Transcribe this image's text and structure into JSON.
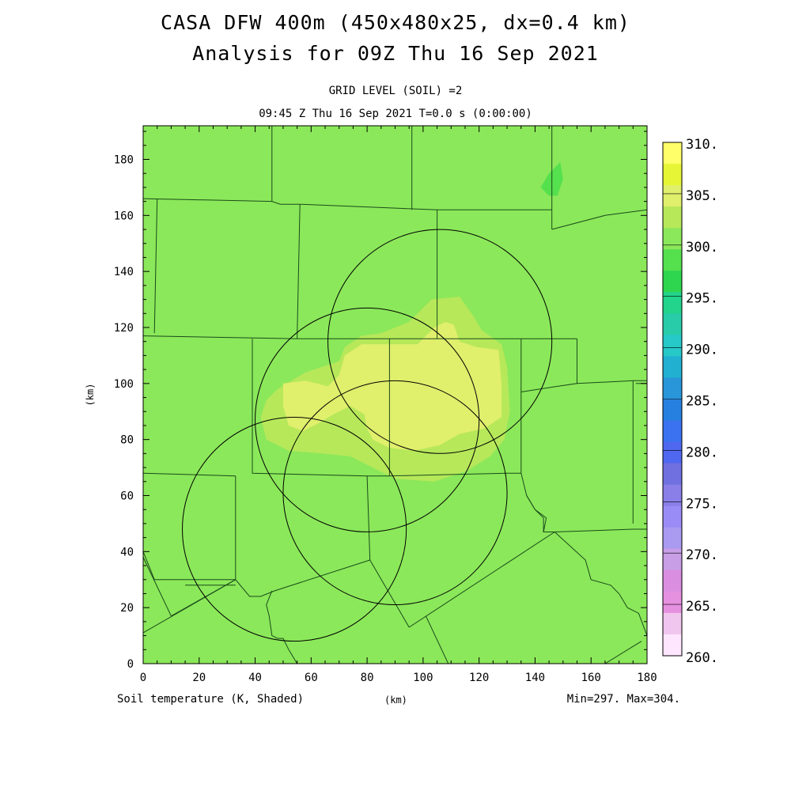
{
  "titles": {
    "line1": "CASA DFW 400m (450x480x25, dx=0.4 km)",
    "line2": "Analysis for 09Z Thu 16 Sep 2021",
    "sub1": "GRID LEVEL (SOIL) =2",
    "sub2": "09:45 Z Thu 16 Sep 2021   T=0.0 s (0:00:00)"
  },
  "footer": {
    "left": "Soil temperature (K, Shaded)",
    "center": "(km)",
    "right": "Min=297. Max=304."
  },
  "chart_data": {
    "type": "heatmap",
    "variable": "Soil temperature (K, Shaded)",
    "xlabel": "(km)",
    "ylabel": "(km)",
    "xlim": [
      0,
      180
    ],
    "ylim": [
      0,
      192
    ],
    "x_ticks": [
      0,
      20,
      40,
      60,
      80,
      100,
      120,
      140,
      160,
      180
    ],
    "y_ticks": [
      0,
      20,
      40,
      60,
      80,
      100,
      120,
      140,
      160,
      180
    ],
    "min": 297,
    "max": 304,
    "background_band": {
      "range": [
        297.5,
        300
      ],
      "color": "#8be85a"
    },
    "colorbar": {
      "labels": [
        "310.",
        "305.",
        "300.",
        "295.",
        "290.",
        "285.",
        "280.",
        "275.",
        "270.",
        "265.",
        "260."
      ],
      "colors": [
        "#ffff6a",
        "#e6f536",
        "#e0ef6c",
        "#b6e85a",
        "#8be85a",
        "#55e04e",
        "#2ed64f",
        "#22d48c",
        "#28cca8",
        "#26c8c8",
        "#22b0d0",
        "#2896d8",
        "#2680e0",
        "#3a72f0",
        "#5068f0",
        "#7070e0",
        "#8a7ee8",
        "#9a8cf6",
        "#aa9af0",
        "#c89ee6",
        "#d98ee0",
        "#e690e0",
        "#f0c6ee",
        "#ffe6ff"
      ]
    },
    "regions": [
      {
        "value_range": [
          300,
          302.5
        ],
        "color": "#b6e85a",
        "outline": [
          [
            48,
            98
          ],
          [
            58,
            104
          ],
          [
            70,
            108
          ],
          [
            72,
            113
          ],
          [
            78,
            117
          ],
          [
            85,
            118
          ],
          [
            95,
            122
          ],
          [
            103,
            130
          ],
          [
            113,
            131
          ],
          [
            118,
            124
          ],
          [
            121,
            119
          ],
          [
            128,
            114
          ],
          [
            130,
            106
          ],
          [
            131,
            90
          ],
          [
            129,
            80
          ],
          [
            124,
            74
          ],
          [
            116,
            69
          ],
          [
            104,
            65
          ],
          [
            90,
            66
          ],
          [
            82,
            70
          ],
          [
            74,
            74
          ],
          [
            64,
            75
          ],
          [
            52,
            76
          ],
          [
            44,
            80
          ],
          [
            42,
            88
          ],
          [
            44,
            94
          ]
        ]
      },
      {
        "value_range": [
          302.5,
          305
        ],
        "color": "#e0ef6c",
        "outline": [
          [
            50,
            100
          ],
          [
            58,
            101
          ],
          [
            66,
            99
          ],
          [
            70,
            103
          ],
          [
            72,
            110
          ],
          [
            78,
            114
          ],
          [
            88,
            114
          ],
          [
            98,
            114
          ],
          [
            104,
            120
          ],
          [
            108,
            122
          ],
          [
            111,
            121
          ],
          [
            113,
            115
          ],
          [
            119,
            113
          ],
          [
            127,
            112
          ],
          [
            128,
            100
          ],
          [
            128,
            88
          ],
          [
            122,
            84
          ],
          [
            113,
            82
          ],
          [
            106,
            78
          ],
          [
            97,
            76
          ],
          [
            88,
            77
          ],
          [
            82,
            80
          ],
          [
            80,
            84
          ],
          [
            79,
            89
          ],
          [
            74,
            92
          ],
          [
            68,
            89
          ],
          [
            63,
            86
          ],
          [
            57,
            83
          ],
          [
            52,
            85
          ],
          [
            50,
            92
          ]
        ]
      },
      {
        "value_range": [
          295,
          297.5
        ],
        "color": "#55e04e",
        "outline": [
          [
            142,
            170
          ],
          [
            145,
            175
          ],
          [
            149,
            179
          ],
          [
            150,
            173
          ],
          [
            148,
            167
          ],
          [
            145,
            167
          ]
        ]
      }
    ],
    "radar_rings": [
      {
        "center": [
          106,
          115
        ],
        "radius_km": 40
      },
      {
        "center": [
          80,
          87
        ],
        "radius_km": 40
      },
      {
        "center": [
          90,
          61
        ],
        "radius_km": 40
      },
      {
        "center": [
          54,
          48
        ],
        "radius_km": 40
      }
    ],
    "county_boundaries": [
      [
        [
          0,
          166
        ],
        [
          46,
          165
        ],
        [
          49,
          164
        ],
        [
          56,
          164
        ],
        [
          105,
          162
        ],
        [
          146,
          162
        ]
      ],
      [
        [
          46,
          192
        ],
        [
          46,
          165
        ]
      ],
      [
        [
          96,
          192
        ],
        [
          96,
          162
        ]
      ],
      [
        [
          146,
          192
        ],
        [
          146,
          155
        ]
      ],
      [
        [
          146,
          155
        ],
        [
          165,
          160
        ],
        [
          180,
          162
        ]
      ],
      [
        [
          5,
          166
        ],
        [
          4,
          118
        ]
      ],
      [
        [
          56,
          164
        ],
        [
          55,
          116
        ]
      ],
      [
        [
          0,
          117
        ],
        [
          55,
          116
        ],
        [
          95,
          116
        ],
        [
          130,
          116
        ],
        [
          140,
          116
        ]
      ],
      [
        [
          105,
          162
        ],
        [
          105,
          116
        ]
      ],
      [
        [
          140,
          116
        ],
        [
          153,
          116
        ],
        [
          155,
          116
        ]
      ],
      [
        [
          155,
          116
        ],
        [
          155,
          100
        ],
        [
          148,
          99
        ],
        [
          135,
          97
        ]
      ],
      [
        [
          155,
          100
        ],
        [
          175,
          101
        ],
        [
          180,
          101
        ]
      ],
      [
        [
          175,
          101
        ],
        [
          175,
          50
        ]
      ],
      [
        [
          176,
          100
        ],
        [
          180,
          100
        ]
      ],
      [
        [
          39,
          116
        ],
        [
          39,
          68
        ],
        [
          80,
          67
        ],
        [
          88,
          67
        ],
        [
          130,
          68
        ],
        [
          135,
          68
        ]
      ],
      [
        [
          135,
          116
        ],
        [
          135,
          68
        ]
      ],
      [
        [
          0,
          68
        ],
        [
          33,
          67
        ]
      ],
      [
        [
          88,
          116
        ],
        [
          88,
          67
        ]
      ],
      [
        [
          33,
          67
        ],
        [
          33,
          30
        ]
      ],
      [
        [
          80,
          67
        ],
        [
          81,
          37
        ]
      ],
      [
        [
          135,
          68
        ],
        [
          137,
          60
        ],
        [
          140,
          55
        ],
        [
          144,
          52
        ],
        [
          143,
          47
        ],
        [
          147,
          47
        ],
        [
          175,
          48
        ],
        [
          180,
          48
        ]
      ],
      [
        [
          147,
          47
        ],
        [
          158,
          37
        ],
        [
          160,
          30
        ],
        [
          167,
          28
        ],
        [
          170,
          25
        ],
        [
          173,
          20
        ],
        [
          177,
          18
        ],
        [
          180,
          10
        ],
        [
          180,
          0
        ]
      ],
      [
        [
          0,
          40
        ],
        [
          4,
          30
        ],
        [
          33,
          30
        ],
        [
          38,
          24
        ],
        [
          42,
          24
        ],
        [
          47,
          26
        ],
        [
          81,
          37
        ]
      ],
      [
        [
          0,
          38
        ],
        [
          10,
          17
        ]
      ],
      [
        [
          10,
          17
        ],
        [
          33,
          30
        ]
      ],
      [
        [
          0,
          11
        ],
        [
          33,
          30
        ]
      ],
      [
        [
          81,
          37
        ],
        [
          95,
          13
        ]
      ],
      [
        [
          95,
          13
        ],
        [
          147,
          47
        ]
      ],
      [
        [
          101,
          17
        ],
        [
          109,
          0
        ]
      ],
      [
        [
          46,
          26
        ],
        [
          44,
          21
        ],
        [
          45,
          17
        ],
        [
          46,
          10
        ],
        [
          48,
          9
        ],
        [
          50,
          9
        ],
        [
          52,
          5
        ],
        [
          55,
          0
        ]
      ],
      [
        [
          165,
          0
        ],
        [
          178,
          8
        ]
      ],
      [
        [
          137,
          60
        ],
        [
          140,
          55
        ],
        [
          143,
          52
        ],
        [
          143,
          47
        ]
      ],
      [
        [
          15,
          28
        ],
        [
          33,
          28
        ]
      ]
    ]
  }
}
